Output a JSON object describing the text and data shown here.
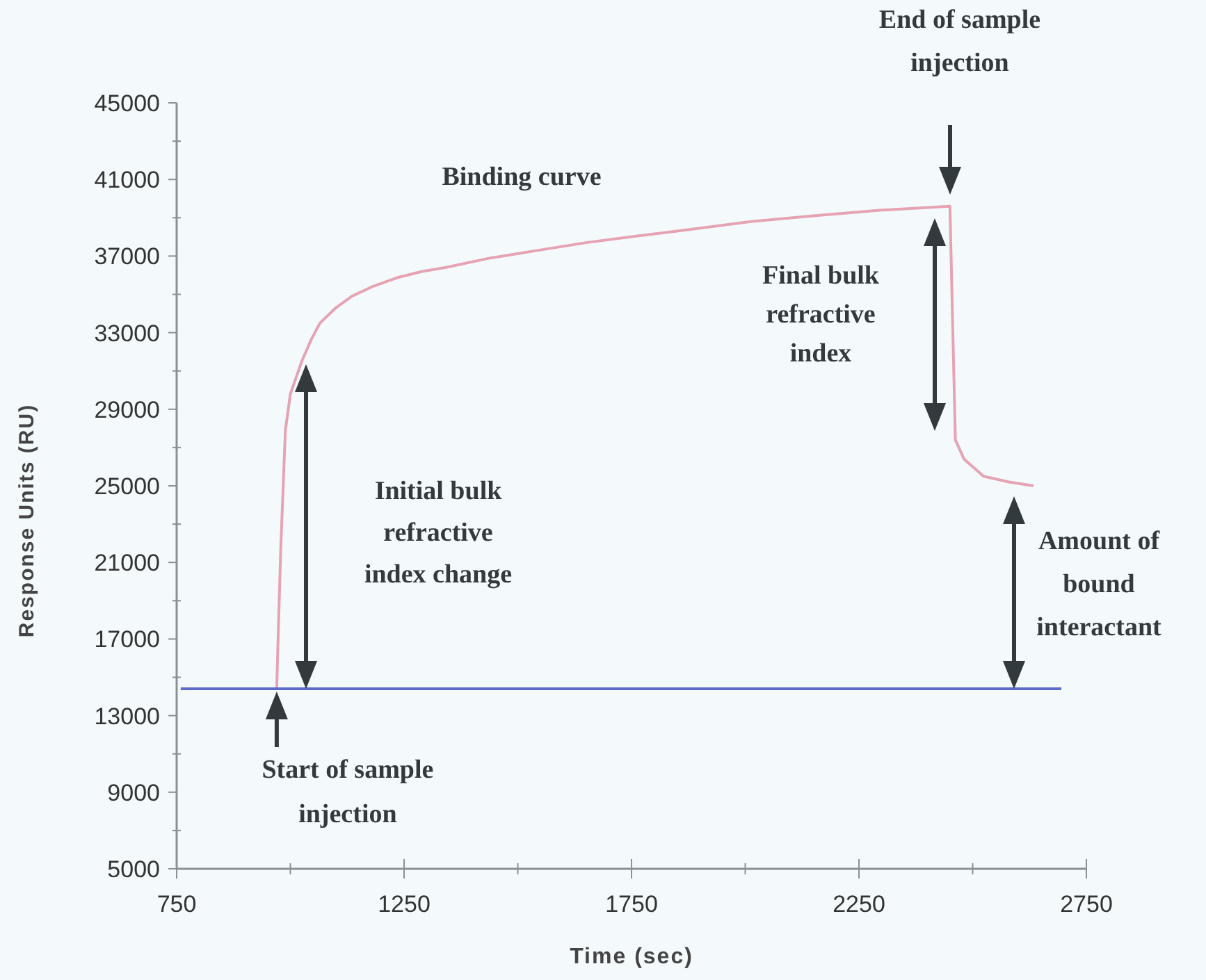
{
  "chart_data": {
    "type": "line",
    "xlabel": "Time (sec)",
    "ylabel": "Response Units (RU)",
    "xlim": [
      750,
      2750
    ],
    "xticks": [
      750,
      {
        "value": 1000,
        "label": null
      },
      1250,
      {
        "value": 1500,
        "label": null
      },
      1750,
      {
        "value": 2000,
        "label": null
      },
      2250,
      {
        "value": 2500,
        "label": null
      },
      2750
    ],
    "ylim": [
      5000,
      45000
    ],
    "yticks": [
      5000,
      {
        "value": 7000,
        "label": null
      },
      9000,
      {
        "value": 11000,
        "label": null
      },
      13000,
      {
        "value": 15000,
        "label": null
      },
      17000,
      {
        "value": 19000,
        "label": null
      },
      21000,
      {
        "value": 23000,
        "label": null
      },
      25000,
      {
        "value": 27000,
        "label": null
      },
      29000,
      {
        "value": 31000,
        "label": null
      },
      33000,
      {
        "value": 35000,
        "label": null
      },
      37000,
      {
        "value": 39000,
        "label": null
      },
      41000,
      {
        "value": 43000,
        "label": null
      },
      45000
    ],
    "series": [
      {
        "color": "#e6a3b3",
        "x": [
          970,
          973,
          979,
          989,
          1000,
          1025,
          1045,
          1065,
          1100,
          1135,
          1180,
          1239,
          1290,
          1340,
          1440,
          1545,
          1650,
          1748,
          1850,
          2013,
          2150,
          2300,
          2450,
          2462,
          2481,
          2524,
          2580,
          2634
        ],
        "values": [
          14400,
          17000,
          21800,
          27900,
          29800,
          31500,
          32600,
          33500,
          34300,
          34900,
          35400,
          35900,
          36200,
          36400,
          36900,
          37300,
          37700,
          38000,
          38300,
          38800,
          39100,
          39400,
          39600,
          27400,
          26400,
          25500,
          25200,
          25000
        ]
      },
      {
        "color": "#5d6bc9",
        "x": [
          759,
          2695
        ],
        "values": [
          14400,
          14400
        ]
      }
    ],
    "annotations": [
      "Binding curve",
      {
        "text": "Start of sample injection",
        "x": 970,
        "y": 14400
      },
      "End of sample injection",
      "Initial bulk refractive index change",
      "Final bulk refractive index",
      "Amount of bound interactant"
    ],
    "grid": false,
    "marker": "none",
    "line_style": "solid"
  }
}
